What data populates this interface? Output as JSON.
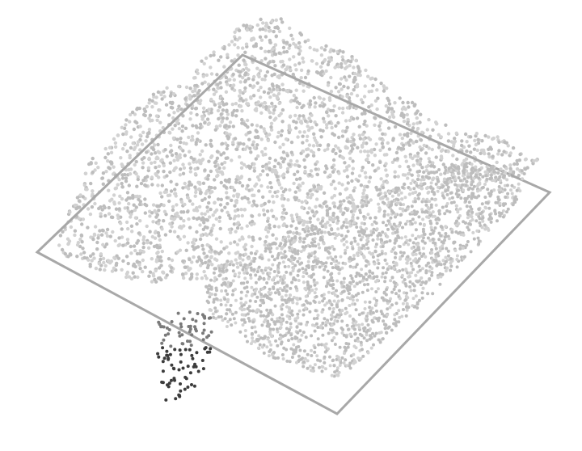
{
  "colors": {
    "background": "#ffffff",
    "plane_outline": "#a8a8a8",
    "points_light": "#d2d2d2",
    "points_mid": "#bdbdbd",
    "points_dark": "#3c3c3c"
  },
  "icons": {
    "plane": "square-outline",
    "points": "dot"
  }
}
